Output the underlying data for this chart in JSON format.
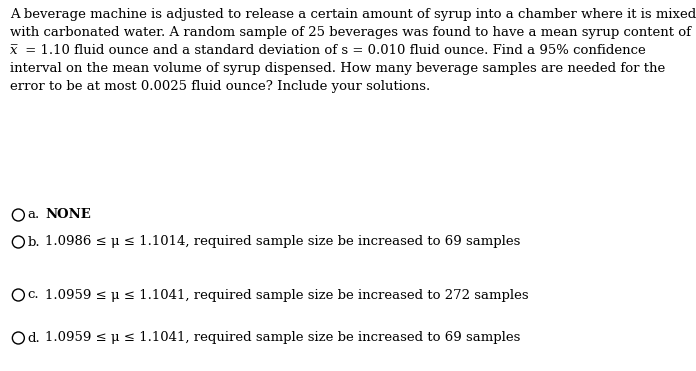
{
  "bg_color": "#ffffff",
  "text_color": "#000000",
  "question_lines": [
    "A beverage machine is adjusted to release a certain amount of syrup into a chamber where it is mixed",
    "with carbonated water. A random sample of 25 beverages was found to have a mean syrup content of",
    "̅x = 1.10 fluid ounce and a standard deviation of s = 0.010 fluid ounce. Find a 95% confidence",
    "interval on the mean volume of syrup dispensed. How many beverage samples are needed for the",
    "error to be at most 0.0025 fluid ounce? Include your solutions."
  ],
  "options": [
    {
      "label": "a.",
      "text": "NONE",
      "bold": true
    },
    {
      "label": "b.",
      "text": "1.0986 ≤ μ ≤ 1.1014, required sample size be increased to 69 samples",
      "bold": false
    },
    {
      "label": "c.",
      "text": "1.0959 ≤ μ ≤ 1.1041, required sample size be increased to 272 samples",
      "bold": false
    },
    {
      "label": "d.",
      "text": "1.0959 ≤ μ ≤ 1.1041, required sample size be increased to 69 samples",
      "bold": false
    }
  ],
  "fig_width": 6.96,
  "fig_height": 3.71,
  "dpi": 100
}
